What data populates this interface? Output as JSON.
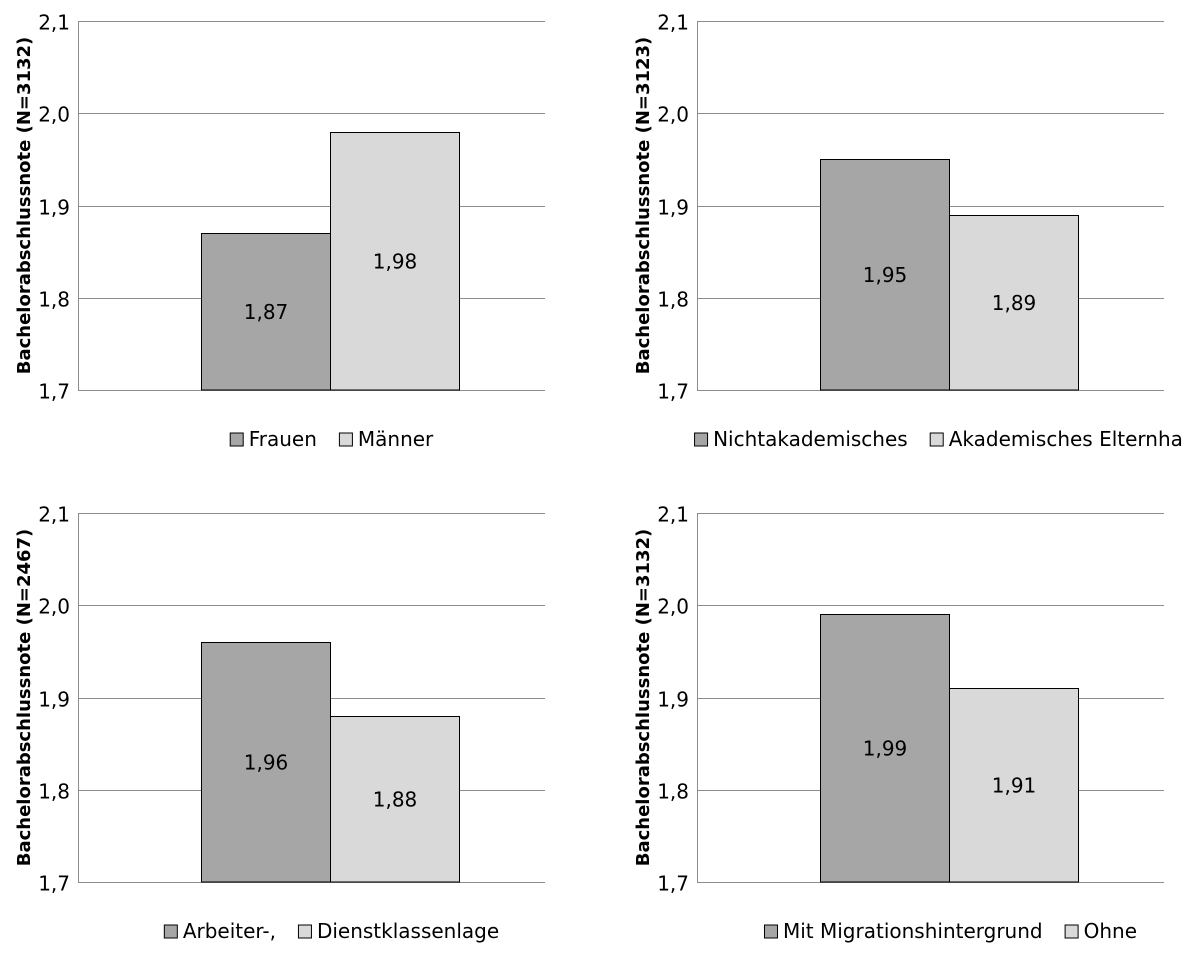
{
  "colors": {
    "series1": "#a6a6a6",
    "series2": "#d9d9d9",
    "grid": "#8c8c8c",
    "outline": "#000000",
    "text": "#000000"
  },
  "chart_data": [
    {
      "type": "bar",
      "ylabel": "Bachelorabschlussnote  (N=3132)",
      "ylim": [
        1.7,
        2.1
      ],
      "yticks": [
        "1,7",
        "1,8",
        "1,9",
        "2,0",
        "2,1"
      ],
      "grid": true,
      "legend": "bottom",
      "series": [
        {
          "name": "Frauen",
          "value": 1.87,
          "label": "1,87"
        },
        {
          "name": "Männer",
          "value": 1.98,
          "label": "1,98"
        }
      ]
    },
    {
      "type": "bar",
      "ylabel": "Bachelorabschlussnote  (N=3123)",
      "ylim": [
        1.7,
        2.1
      ],
      "yticks": [
        "1,7",
        "1,8",
        "1,9",
        "2,0",
        "2,1"
      ],
      "grid": true,
      "legend": "bottom",
      "series": [
        {
          "name": "Nichtakademisches",
          "value": 1.95,
          "label": "1,95"
        },
        {
          "name": "Akademisches Elternhaus",
          "value": 1.89,
          "label": "1,89"
        }
      ]
    },
    {
      "type": "bar",
      "ylabel": "Bachelorabschlussnote  (N=2467)",
      "ylim": [
        1.7,
        2.1
      ],
      "yticks": [
        "1,7",
        "1,8",
        "1,9",
        "2,0",
        "2,1"
      ],
      "grid": true,
      "legend": "bottom",
      "series": [
        {
          "name": "Arbeiter-,",
          "value": 1.96,
          "label": "1,96"
        },
        {
          "name": "Dienstklassenlage",
          "value": 1.88,
          "label": "1,88"
        }
      ]
    },
    {
      "type": "bar",
      "ylabel": "Bachelorabschlussnote  (N=3132)",
      "ylim": [
        1.7,
        2.1
      ],
      "yticks": [
        "1,7",
        "1,8",
        "1,9",
        "2,0",
        "2,1"
      ],
      "grid": true,
      "legend": "bottom",
      "series": [
        {
          "name": "Mit Migrationshintergrund",
          "value": 1.99,
          "label": "1,99"
        },
        {
          "name": "Ohne",
          "value": 1.91,
          "label": "1,91"
        }
      ]
    }
  ]
}
